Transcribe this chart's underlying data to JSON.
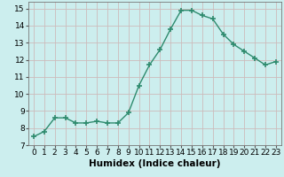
{
  "x": [
    0,
    1,
    2,
    3,
    4,
    5,
    6,
    7,
    8,
    9,
    10,
    11,
    12,
    13,
    14,
    15,
    16,
    17,
    18,
    19,
    20,
    21,
    22,
    23
  ],
  "y": [
    7.5,
    7.8,
    8.6,
    8.6,
    8.3,
    8.3,
    8.4,
    8.3,
    8.3,
    8.9,
    10.5,
    11.7,
    12.6,
    13.8,
    14.9,
    14.9,
    14.6,
    14.4,
    13.5,
    12.9,
    12.5,
    12.1,
    11.7,
    11.9
  ],
  "line_color": "#2e8b6e",
  "marker": "+",
  "marker_size": 4,
  "marker_linewidth": 1.2,
  "bg_color": "#cceeee",
  "grid_color": "#ccbbbb",
  "xlabel": "Humidex (Indice chaleur)",
  "xlim": [
    -0.5,
    23.5
  ],
  "ylim": [
    7,
    15.4
  ],
  "yticks": [
    7,
    8,
    9,
    10,
    11,
    12,
    13,
    14,
    15
  ],
  "xticks": [
    0,
    1,
    2,
    3,
    4,
    5,
    6,
    7,
    8,
    9,
    10,
    11,
    12,
    13,
    14,
    15,
    16,
    17,
    18,
    19,
    20,
    21,
    22,
    23
  ],
  "tick_fontsize": 6.5,
  "xlabel_fontsize": 7.5,
  "line_width": 1.0
}
